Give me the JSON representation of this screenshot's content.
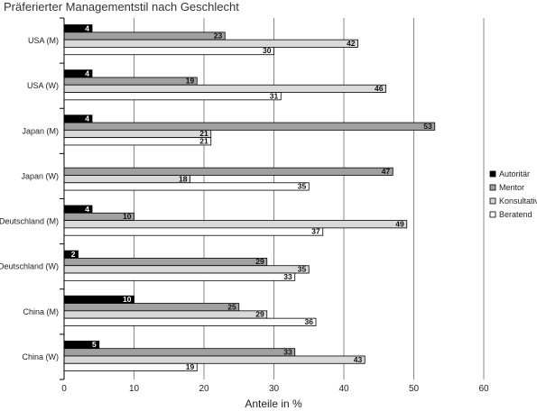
{
  "chart_data": {
    "type": "bar",
    "orientation": "horizontal",
    "title": "Präferierter Managementstil nach Geschlecht",
    "xlabel": "Anteile in %",
    "ylabel": "",
    "xlim": [
      0,
      60
    ],
    "xticks": [
      0,
      10,
      20,
      30,
      40,
      50,
      60
    ],
    "grid": "vertical",
    "legend_position": "right",
    "categories": [
      "USA (M)",
      "USA (W)",
      "Japan (M)",
      "Japan (W)",
      "Deutschland (M)",
      "Deutschland (W)",
      "China (M)",
      "China (W)"
    ],
    "series": [
      {
        "name": "Autoritär",
        "color": "#000000",
        "label_color": "#ffffff",
        "values": [
          4,
          4,
          4,
          null,
          4,
          2,
          10,
          5
        ]
      },
      {
        "name": "Mentor",
        "color": "#a0a0a0",
        "label_color": "#111111",
        "values": [
          23,
          19,
          53,
          47,
          10,
          29,
          25,
          33
        ]
      },
      {
        "name": "Konsultativ",
        "color": "#d9d9d9",
        "label_color": "#111111",
        "values": [
          42,
          46,
          21,
          18,
          49,
          35,
          29,
          43
        ]
      },
      {
        "name": "Beratend",
        "color": "#ffffff",
        "label_color": "#111111",
        "values": [
          30,
          31,
          21,
          35,
          37,
          33,
          36,
          19
        ]
      }
    ]
  }
}
